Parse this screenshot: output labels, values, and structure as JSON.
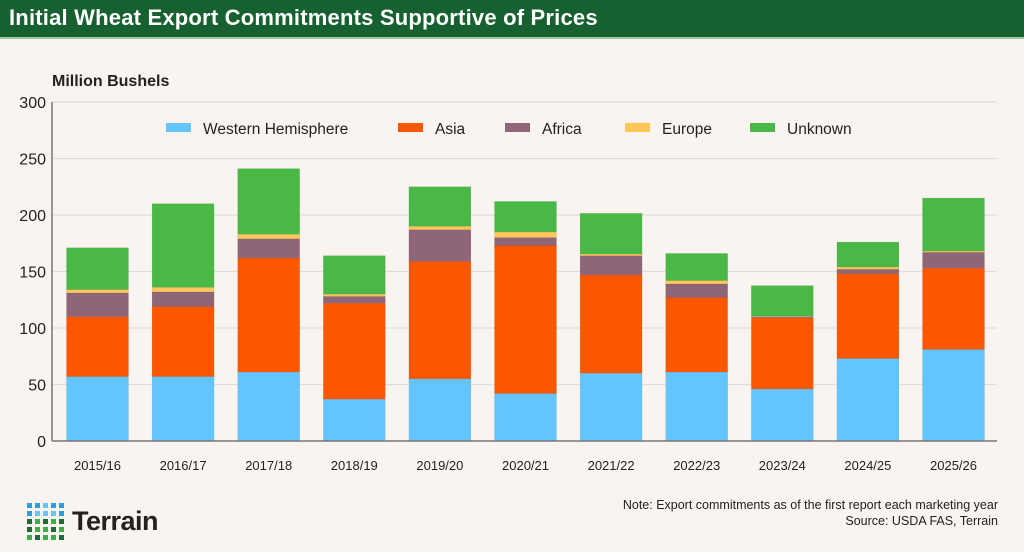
{
  "header": {
    "title": "Initial Wheat Export Commitments Supportive of Prices"
  },
  "chart_data": {
    "type": "bar",
    "stacked": true,
    "title": "Initial Wheat Export Commitments Supportive of Prices",
    "ylabel": "Million Bushels",
    "xlabel": "",
    "ylim": [
      0,
      300
    ],
    "yticks": [
      0,
      50,
      100,
      150,
      200,
      250,
      300
    ],
    "grid": true,
    "legend_position": "top",
    "categories": [
      "2015/16",
      "2016/17",
      "2017/18",
      "2018/19",
      "2019/20",
      "2020/21",
      "2021/22",
      "2022/23",
      "2023/24",
      "2024/25",
      "2025/26"
    ],
    "series": [
      {
        "name": "Western Hemisphere",
        "color": "#64c5fe",
        "values": [
          57,
          57,
          61,
          37,
          55,
          42,
          60,
          61,
          46,
          73,
          81
        ]
      },
      {
        "name": "Asia",
        "color": "#fa5700",
        "values": [
          53,
          62,
          101,
          85,
          104,
          131,
          87,
          66,
          63,
          75,
          72
        ]
      },
      {
        "name": "Africa",
        "color": "#8f6578",
        "values": [
          21,
          13,
          17,
          6,
          28,
          7,
          17,
          12,
          1,
          4,
          14
        ]
      },
      {
        "name": "Europe",
        "color": "#fdc65a",
        "values": [
          3,
          4,
          4,
          2,
          3,
          5,
          1.5,
          3,
          0.5,
          2,
          1
        ]
      },
      {
        "name": "Unknown",
        "color": "#4ab846",
        "values": [
          37,
          74,
          58,
          34,
          35,
          27,
          36,
          24,
          27,
          22,
          47
        ]
      }
    ]
  },
  "footer": {
    "note": "Note: Export commitments as of the first report each marketing year",
    "source": "Source: USDA FAS, Terrain",
    "logo_text": "Terrain"
  }
}
